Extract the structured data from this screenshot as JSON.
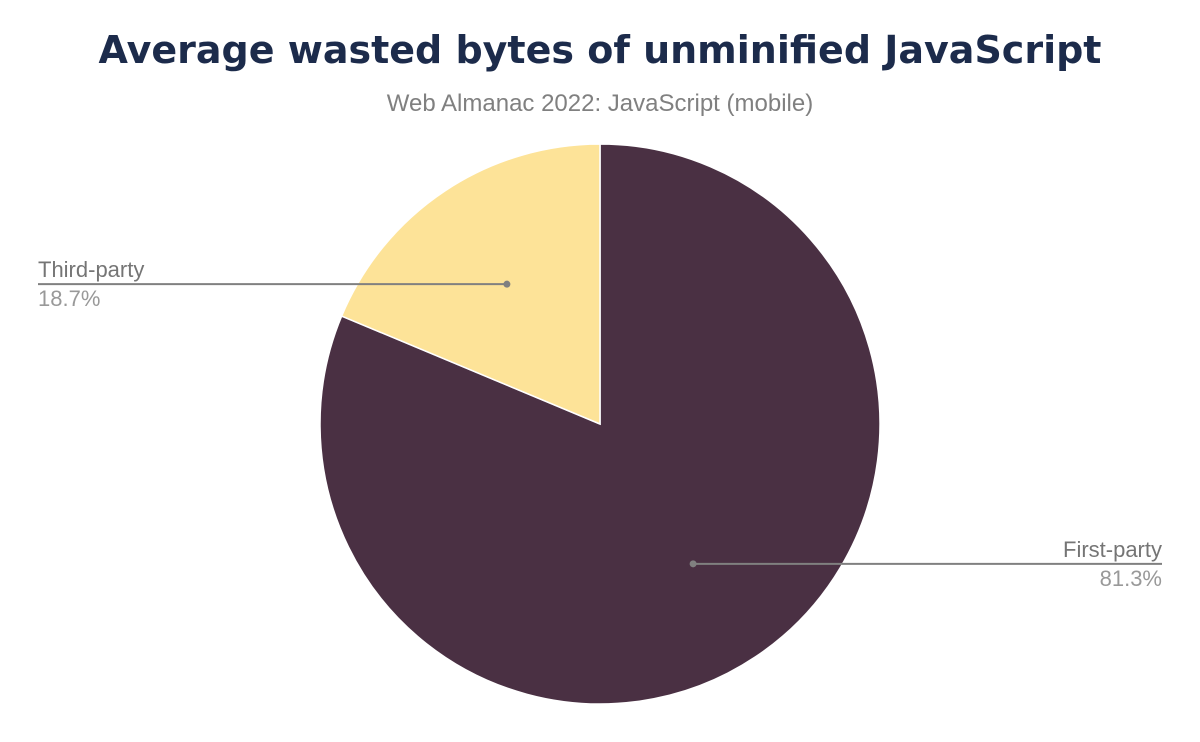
{
  "chart_data": {
    "type": "pie",
    "title": "Average wasted bytes of unminified JavaScript",
    "subtitle": "Web Almanac 2022: JavaScript (mobile)",
    "slices": [
      {
        "label": "First-party",
        "value": 81.3,
        "value_label": "81.3%",
        "color": "#4a3043"
      },
      {
        "label": "Third-party",
        "value": 18.7,
        "value_label": "18.7%",
        "color": "#fde398"
      }
    ],
    "start_angle": "top",
    "direction": "clockwise",
    "legend": "none",
    "label_color": "#808080"
  }
}
